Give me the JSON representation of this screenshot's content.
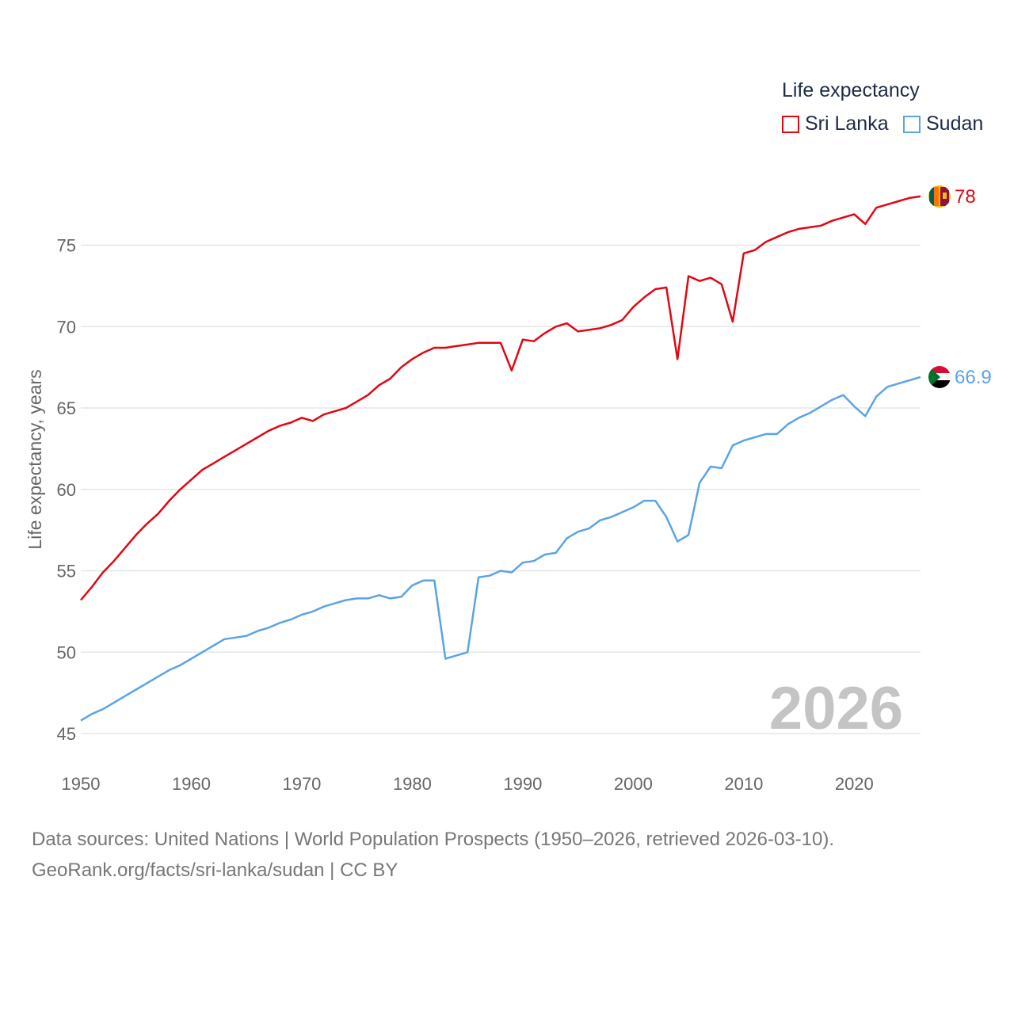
{
  "legend": {
    "title": "Life expectancy",
    "items": [
      {
        "label": "Sri Lanka",
        "color": "#e30613"
      },
      {
        "label": "Sudan",
        "color": "#5ba3e6"
      }
    ]
  },
  "year_watermark": "2026",
  "footer": {
    "line1": "Data sources: United Nations | World Population Prospects (1950–2026, retrieved 2026-03-10).",
    "line2": "GeoRank.org/facts/sri-lanka/sudan | CC BY"
  },
  "chart_data": {
    "type": "line",
    "title": "Life expectancy",
    "xlabel": "",
    "ylabel": "Life expectancy, years",
    "xlim": [
      1950,
      2026
    ],
    "ylim": [
      45,
      79
    ],
    "x_ticks": [
      1950,
      1960,
      1970,
      1980,
      1990,
      2000,
      2010,
      2020
    ],
    "y_ticks": [
      45,
      50,
      55,
      60,
      65,
      70,
      75
    ],
    "grid": true,
    "legend_position": "top-right",
    "x": [
      1950,
      1951,
      1952,
      1953,
      1954,
      1955,
      1956,
      1957,
      1958,
      1959,
      1960,
      1961,
      1962,
      1963,
      1964,
      1965,
      1966,
      1967,
      1968,
      1969,
      1970,
      1971,
      1972,
      1973,
      1974,
      1975,
      1976,
      1977,
      1978,
      1979,
      1980,
      1981,
      1982,
      1983,
      1984,
      1985,
      1986,
      1987,
      1988,
      1989,
      1990,
      1991,
      1992,
      1993,
      1994,
      1995,
      1996,
      1997,
      1998,
      1999,
      2000,
      2001,
      2002,
      2003,
      2004,
      2005,
      2006,
      2007,
      2008,
      2009,
      2010,
      2011,
      2012,
      2013,
      2014,
      2015,
      2016,
      2017,
      2018,
      2019,
      2020,
      2021,
      2022,
      2023,
      2024,
      2025,
      2026
    ],
    "series": [
      {
        "name": "Sri Lanka",
        "color": "#e30613",
        "end_label": "78",
        "values": [
          53.2,
          54.0,
          54.9,
          55.6,
          56.4,
          57.2,
          57.9,
          58.5,
          59.3,
          60.0,
          60.6,
          61.2,
          61.6,
          62.0,
          62.4,
          62.8,
          63.2,
          63.6,
          63.9,
          64.1,
          64.4,
          64.2,
          64.6,
          64.8,
          65.0,
          65.4,
          65.8,
          66.4,
          66.8,
          67.5,
          68.0,
          68.4,
          68.7,
          68.7,
          68.8,
          68.9,
          69.0,
          69.0,
          69.0,
          67.3,
          69.2,
          69.1,
          69.6,
          70.0,
          70.2,
          69.7,
          69.8,
          69.9,
          70.1,
          70.4,
          71.2,
          71.8,
          72.3,
          72.4,
          68.0,
          73.1,
          72.8,
          73.0,
          72.6,
          70.3,
          74.5,
          74.7,
          75.2,
          75.5,
          75.8,
          76.0,
          76.1,
          76.2,
          76.5,
          76.7,
          76.9,
          76.3,
          77.3,
          77.5,
          77.7,
          77.9,
          78.0
        ]
      },
      {
        "name": "Sudan",
        "color": "#5ba3e6",
        "end_label": "66.9",
        "values": [
          45.8,
          46.2,
          46.5,
          46.9,
          47.3,
          47.7,
          48.1,
          48.5,
          48.9,
          49.2,
          49.6,
          50.0,
          50.4,
          50.8,
          50.9,
          51.0,
          51.3,
          51.5,
          51.8,
          52.0,
          52.3,
          52.5,
          52.8,
          53.0,
          53.2,
          53.3,
          53.3,
          53.5,
          53.3,
          53.4,
          54.1,
          54.4,
          54.4,
          49.6,
          49.8,
          50.0,
          54.6,
          54.7,
          55.0,
          54.9,
          55.5,
          55.6,
          56.0,
          56.1,
          57.0,
          57.4,
          57.6,
          58.1,
          58.3,
          58.6,
          58.9,
          59.3,
          59.3,
          58.3,
          56.8,
          57.2,
          60.4,
          61.4,
          61.3,
          62.7,
          63.0,
          63.2,
          63.4,
          63.4,
          64.0,
          64.4,
          64.7,
          65.1,
          65.5,
          65.8,
          65.1,
          64.5,
          65.7,
          66.3,
          66.5,
          66.7,
          66.9
        ]
      }
    ]
  }
}
